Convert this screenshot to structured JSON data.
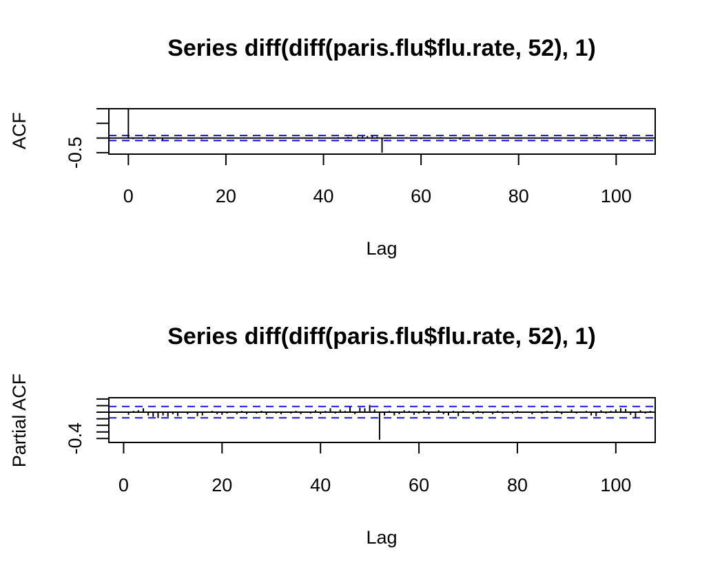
{
  "chart_data": [
    {
      "type": "bar",
      "title": "Series  diff(diff(paris.flu$flu.rate, 52), 1)",
      "xlabel": "Lag",
      "ylabel": "ACF",
      "xlim": [
        -4,
        108
      ],
      "ylim": [
        -0.55,
        1.0
      ],
      "x_ticks": [
        0,
        20,
        40,
        60,
        80,
        100
      ],
      "x_tick_labels": [
        "0",
        "20",
        "40",
        "60",
        "80",
        "100"
      ],
      "y_ticks": [
        -0.5,
        0.0,
        0.5,
        1.0
      ],
      "y_tick_labels": [
        "-0.5",
        "",
        "",
        ""
      ],
      "conf_limits": [
        0.0863,
        -0.0863
      ],
      "lags": [
        0,
        1,
        2,
        3,
        4,
        5,
        6,
        7,
        8,
        9,
        10,
        11,
        12,
        13,
        14,
        15,
        16,
        17,
        18,
        19,
        20,
        21,
        22,
        23,
        24,
        25,
        26,
        27,
        28,
        29,
        30,
        31,
        32,
        33,
        34,
        35,
        36,
        37,
        38,
        39,
        40,
        41,
        42,
        43,
        44,
        45,
        46,
        47,
        48,
        49,
        50,
        51,
        52,
        53,
        54,
        55,
        56,
        57,
        58,
        59,
        60,
        61,
        62,
        63,
        64,
        65,
        66,
        67,
        68,
        69,
        70,
        71,
        72,
        73,
        74,
        75,
        76,
        77,
        78,
        79,
        80,
        81,
        82,
        83,
        84,
        85,
        86,
        87,
        88,
        89,
        90,
        91,
        92,
        93,
        94,
        95,
        96,
        97,
        98,
        99,
        100,
        101,
        102,
        103,
        104,
        105,
        106,
        107
      ],
      "values": [
        1.0,
        -0.04,
        0.02,
        0.03,
        0.04,
        -0.05,
        -0.03,
        -0.07,
        -0.02,
        0.01,
        -0.03,
        0.02,
        0.01,
        -0.02,
        0.0,
        -0.04,
        0.02,
        0.0,
        0.01,
        -0.02,
        0.01,
        -0.01,
        0.02,
        -0.01,
        0.0,
        0.01,
        -0.02,
        0.02,
        -0.01,
        0.0,
        0.01,
        -0.02,
        0.02,
        0.01,
        -0.01,
        0.0,
        0.02,
        -0.01,
        0.01,
        0.03,
        -0.02,
        0.01,
        0.02,
        0.03,
        0.02,
        0.04,
        0.03,
        0.05,
        0.06,
        0.07,
        0.08,
        0.05,
        -0.5,
        -0.03,
        0.02,
        -0.01,
        -0.02,
        0.03,
        0.02,
        -0.01,
        -0.04,
        0.01,
        0.02,
        -0.02,
        0.03,
        0.01,
        -0.03,
        0.02,
        -0.06,
        0.01,
        0.02,
        -0.01,
        0.02,
        0.0,
        -0.02,
        0.01,
        0.02,
        -0.01,
        0.02,
        0.01,
        -0.02,
        0.01,
        0.0,
        0.02,
        -0.01,
        0.01,
        -0.02,
        0.02,
        0.01,
        -0.01,
        0.02,
        0.0,
        -0.01,
        0.02,
        -0.03,
        0.02,
        0.04,
        0.0,
        -0.04,
        0.02,
        0.03,
        0.05,
        0.04,
        -0.03,
        -0.02,
        0.02,
        -0.01,
        0.02
      ]
    },
    {
      "type": "bar",
      "title": "Series  diff(diff(paris.flu$flu.rate, 52), 1)",
      "xlabel": "Lag",
      "ylabel": "Partial ACF",
      "xlim": [
        -3,
        108
      ],
      "ylim": [
        -0.46,
        0.22
      ],
      "x_ticks": [
        0,
        20,
        40,
        60,
        80,
        100
      ],
      "x_tick_labels": [
        "0",
        "20",
        "40",
        "60",
        "80",
        "100"
      ],
      "y_ticks": [
        -0.4,
        -0.3,
        -0.2,
        -0.1,
        0.0,
        0.1,
        0.2
      ],
      "y_tick_labels": [
        "-0.4",
        "",
        "",
        "",
        "",
        "",
        ""
      ],
      "conf_limits": [
        0.0863,
        -0.0863
      ],
      "lags": [
        1,
        2,
        3,
        4,
        5,
        6,
        7,
        8,
        9,
        10,
        11,
        12,
        13,
        14,
        15,
        16,
        17,
        18,
        19,
        20,
        21,
        22,
        23,
        24,
        25,
        26,
        27,
        28,
        29,
        30,
        31,
        32,
        33,
        34,
        35,
        36,
        37,
        38,
        39,
        40,
        41,
        42,
        43,
        44,
        45,
        46,
        47,
        48,
        49,
        50,
        51,
        52,
        53,
        54,
        55,
        56,
        57,
        58,
        59,
        60,
        61,
        62,
        63,
        64,
        65,
        66,
        67,
        68,
        69,
        70,
        71,
        72,
        73,
        74,
        75,
        76,
        77,
        78,
        79,
        80,
        81,
        82,
        83,
        84,
        85,
        86,
        87,
        88,
        89,
        90,
        91,
        92,
        93,
        94,
        95,
        96,
        97,
        98,
        99,
        100,
        101,
        102,
        103,
        104,
        105,
        106,
        107
      ],
      "values": [
        -0.04,
        0.02,
        0.03,
        0.06,
        -0.05,
        -0.07,
        -0.09,
        -0.05,
        -0.07,
        -0.03,
        -0.06,
        0.01,
        -0.03,
        -0.01,
        -0.06,
        -0.05,
        0.01,
        0.02,
        -0.03,
        -0.04,
        -0.02,
        0.01,
        -0.03,
        0.02,
        -0.03,
        0.01,
        -0.02,
        0.02,
        -0.04,
        0.01,
        -0.02,
        -0.03,
        0.01,
        -0.02,
        0.02,
        -0.03,
        0.01,
        -0.02,
        0.03,
        -0.03,
        0.02,
        0.06,
        -0.02,
        0.04,
        0.02,
        0.08,
        -0.03,
        0.07,
        0.06,
        0.11,
        0.04,
        -0.42,
        -0.05,
        0.02,
        -0.05,
        -0.03,
        0.03,
        0.02,
        -0.04,
        -0.02,
        0.03,
        -0.04,
        0.01,
        0.03,
        -0.03,
        -0.05,
        0.02,
        -0.06,
        0.02,
        -0.01,
        -0.03,
        0.02,
        -0.02,
        0.01,
        -0.03,
        0.02,
        -0.02,
        0.01,
        -0.02,
        0.02,
        -0.01,
        0.01,
        -0.03,
        0.01,
        -0.02,
        0.02,
        -0.01,
        0.02,
        -0.03,
        0.01,
        0.04,
        -0.02,
        0.01,
        0.02,
        -0.05,
        -0.06,
        0.03,
        -0.02,
        0.02,
        0.04,
        0.06,
        0.05,
        -0.04,
        -0.09,
        0.03,
        -0.02,
        0.02
      ]
    }
  ]
}
